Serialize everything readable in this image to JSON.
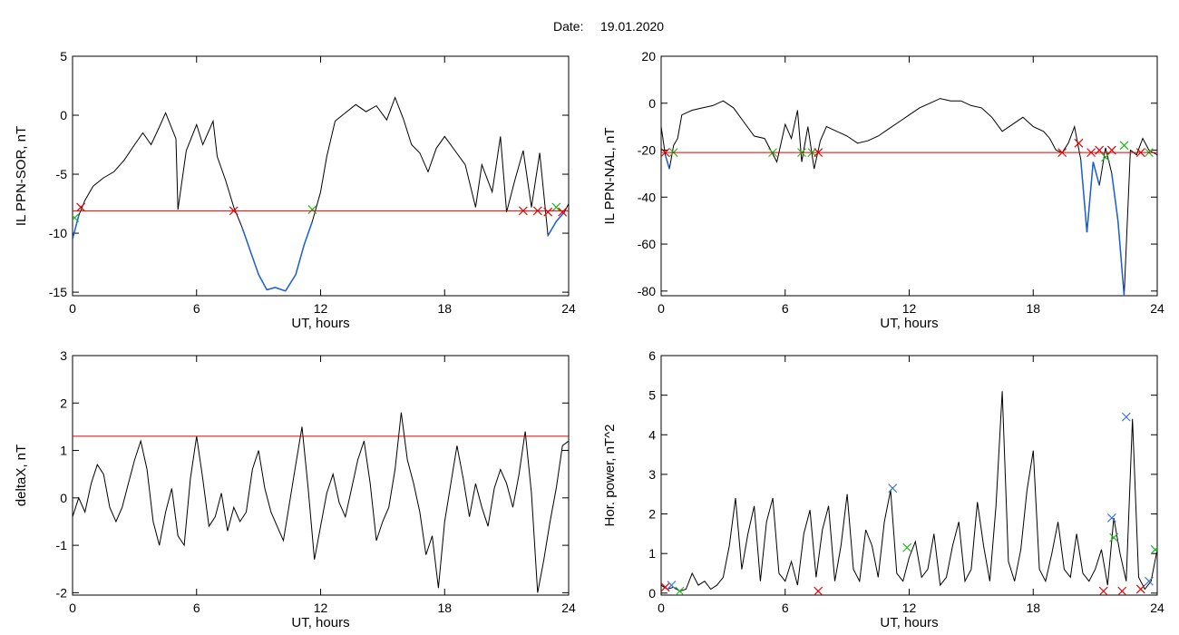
{
  "header": {
    "date_label": "Date:",
    "date_value": "19.01.2020"
  },
  "colors": {
    "trace": "#000000",
    "low_segment": "#1a5fd6",
    "threshold": "#e00000",
    "marker_red": "#e00000",
    "marker_green": "#1fb51f",
    "marker_blue": "#3a78d8"
  },
  "chart_data": [
    {
      "type": "line",
      "id": "ppn-sor",
      "title": "",
      "xlabel": "UT, hours",
      "ylabel": "IL PPN-SOR, nT",
      "xlim": [
        0,
        24
      ],
      "ylim": [
        -15.3,
        5
      ],
      "xticks": [
        0,
        6,
        12,
        18,
        24
      ],
      "yticks": [
        5,
        0,
        -5,
        -10,
        -15
      ],
      "threshold": -8.1,
      "series": [
        {
          "x": [
            0,
            0.3,
            0.6,
            1,
            1.5,
            2,
            2.5,
            3,
            3.4,
            3.8,
            4.2,
            4.5,
            5,
            5.1,
            5.5,
            6,
            6.3,
            6.8,
            7,
            7.4,
            7.8,
            8.2,
            8.6,
            9,
            9.4,
            9.8,
            10.3,
            10.8,
            11.2,
            11.6,
            12,
            12.3,
            12.7,
            13.2,
            13.7,
            14.2,
            14.7,
            15.2,
            15.6,
            16,
            16.4,
            16.8,
            17.2,
            17.6,
            18,
            18.5,
            19,
            19.5,
            19.8,
            20.3,
            20.7,
            21,
            21.4,
            21.8,
            22.2,
            22.6,
            23,
            23.4,
            23.8,
            24
          ],
          "y": [
            -10.5,
            -8.5,
            -7.2,
            -6,
            -5.3,
            -4.8,
            -3.8,
            -2.5,
            -1.5,
            -2.5,
            -1,
            0.2,
            -2,
            -8,
            -3,
            -0.8,
            -2.5,
            -0.5,
            -3.5,
            -5.5,
            -7.8,
            -9.5,
            -11.5,
            -13.5,
            -14.8,
            -14.6,
            -14.9,
            -13.5,
            -11,
            -9,
            -6.5,
            -3.5,
            -0.5,
            0.2,
            0.9,
            0.3,
            0.8,
            -0.4,
            1.5,
            -0.3,
            -2.5,
            -3.2,
            -4.8,
            -2.8,
            -1.8,
            -3,
            -4.2,
            -7.8,
            -4.2,
            -6.5,
            -1.8,
            -8.2,
            -5.5,
            -3,
            -7.8,
            -3.2,
            -10.2,
            -9,
            -8.2,
            -7.5
          ]
        }
      ],
      "markers": [
        {
          "x": 0.1,
          "y": -8.7,
          "color": "green"
        },
        {
          "x": 0.4,
          "y": -7.8,
          "color": "red"
        },
        {
          "x": 7.8,
          "y": -8.1,
          "color": "red"
        },
        {
          "x": 11.6,
          "y": -8.0,
          "color": "green"
        },
        {
          "x": 21.8,
          "y": -8.1,
          "color": "red"
        },
        {
          "x": 22.5,
          "y": -8.1,
          "color": "red"
        },
        {
          "x": 23.0,
          "y": -8.2,
          "color": "red"
        },
        {
          "x": 23.4,
          "y": -7.8,
          "color": "green"
        },
        {
          "x": 23.7,
          "y": -8.2,
          "color": "red"
        }
      ]
    },
    {
      "type": "line",
      "id": "ppn-nal",
      "title": "",
      "xlabel": "UT, hours",
      "ylabel": "IL PPN-NAL, nT",
      "xlim": [
        0,
        24
      ],
      "ylim": [
        -82,
        20
      ],
      "xticks": [
        0,
        6,
        12,
        18,
        24
      ],
      "yticks": [
        20,
        0,
        -20,
        -40,
        -60,
        -80
      ],
      "threshold": -21,
      "series": [
        {
          "x": [
            0,
            0.2,
            0.4,
            0.6,
            0.8,
            1,
            1.5,
            2,
            2.5,
            3,
            3.5,
            4,
            4.5,
            5,
            5.3,
            5.6,
            6,
            6.3,
            6.6,
            6.8,
            7.1,
            7.4,
            7.7,
            8,
            8.5,
            9,
            9.5,
            10,
            10.5,
            11,
            11.5,
            12,
            12.5,
            13,
            13.5,
            14,
            14.5,
            15,
            15.5,
            16,
            16.5,
            17,
            17.5,
            18,
            18.5,
            18.8,
            19.1,
            19.4,
            19.7,
            20,
            20.3,
            20.6,
            20.9,
            21.2,
            21.5,
            21.8,
            22.1,
            22.4,
            22.7,
            23,
            23.3,
            23.6,
            24
          ],
          "y": [
            -10,
            -22,
            -28,
            -18,
            -15,
            -5,
            -3,
            -2,
            -1,
            1,
            -2,
            -8,
            -14,
            -15,
            -20,
            -25,
            -9,
            -15,
            -3,
            -25,
            -10,
            -28,
            -16,
            -10,
            -12,
            -14,
            -17,
            -16,
            -14,
            -11,
            -8,
            -5,
            -2,
            0,
            2,
            1,
            1,
            -1,
            -2,
            -6,
            -12,
            -9,
            -6,
            -10,
            -12,
            -15,
            -20,
            -21,
            -17,
            -10,
            -24,
            -55,
            -25,
            -35,
            -19,
            -30,
            -50,
            -82,
            -20,
            -22,
            -15,
            -20,
            -22
          ]
        }
      ],
      "markers": [
        {
          "x": 0.2,
          "y": -21,
          "color": "red"
        },
        {
          "x": 0.6,
          "y": -21,
          "color": "green"
        },
        {
          "x": 5.4,
          "y": -21,
          "color": "green"
        },
        {
          "x": 6.8,
          "y": -21,
          "color": "green"
        },
        {
          "x": 7.3,
          "y": -21,
          "color": "green"
        },
        {
          "x": 7.6,
          "y": -21,
          "color": "red"
        },
        {
          "x": 19.4,
          "y": -21,
          "color": "red"
        },
        {
          "x": 20.2,
          "y": -17,
          "color": "red"
        },
        {
          "x": 20.8,
          "y": -21,
          "color": "red"
        },
        {
          "x": 21.2,
          "y": -20,
          "color": "red"
        },
        {
          "x": 21.5,
          "y": -23,
          "color": "green"
        },
        {
          "x": 21.8,
          "y": -20,
          "color": "red"
        },
        {
          "x": 22.4,
          "y": -18,
          "color": "green"
        },
        {
          "x": 23.2,
          "y": -21,
          "color": "red"
        },
        {
          "x": 23.6,
          "y": -21,
          "color": "green"
        }
      ]
    },
    {
      "type": "line",
      "id": "deltax",
      "title": "",
      "xlabel": "UT, hours",
      "ylabel": "deltaX, nT",
      "xlim": [
        0,
        24
      ],
      "ylim": [
        -2.05,
        3
      ],
      "xticks": [
        0,
        6,
        12,
        18,
        24
      ],
      "yticks": [
        3,
        2,
        1,
        0,
        -1,
        -2
      ],
      "threshold": 1.3,
      "series": [
        {
          "x": [
            0,
            0.3,
            0.6,
            0.9,
            1.2,
            1.5,
            1.8,
            2.1,
            2.4,
            2.7,
            3,
            3.3,
            3.6,
            3.9,
            4.2,
            4.5,
            4.8,
            5.1,
            5.4,
            5.7,
            6,
            6.3,
            6.6,
            6.9,
            7.2,
            7.5,
            7.8,
            8.1,
            8.4,
            8.7,
            9,
            9.3,
            9.6,
            9.9,
            10.2,
            10.5,
            10.8,
            11.1,
            11.4,
            11.7,
            12,
            12.3,
            12.6,
            12.9,
            13.2,
            13.5,
            13.8,
            14.1,
            14.4,
            14.7,
            15,
            15.3,
            15.6,
            15.9,
            16.2,
            16.5,
            16.8,
            17.1,
            17.4,
            17.7,
            18,
            18.3,
            18.6,
            18.9,
            19.2,
            19.5,
            19.8,
            20.1,
            20.4,
            20.7,
            21,
            21.3,
            21.6,
            21.9,
            22.2,
            22.5,
            22.8,
            23.1,
            23.4,
            23.7,
            24
          ],
          "y": [
            -0.4,
            0,
            -0.3,
            0.3,
            0.7,
            0.5,
            -0.2,
            -0.5,
            -0.2,
            0.3,
            0.8,
            1.2,
            0.6,
            -0.5,
            -1,
            -0.3,
            0.2,
            -0.8,
            -1,
            0.4,
            1.3,
            0.4,
            -0.6,
            -0.4,
            0.1,
            -0.7,
            -0.2,
            -0.5,
            -0.3,
            0.6,
            1,
            0.2,
            -0.3,
            -0.6,
            -0.9,
            -0.1,
            0.7,
            1.5,
            0.2,
            -1.3,
            -0.6,
            0.1,
            0.5,
            -0.1,
            -0.4,
            0.2,
            0.8,
            1.2,
            0.3,
            -0.9,
            -0.5,
            -0.2,
            0.6,
            1.8,
            0.8,
            0.3,
            -0.3,
            -1.2,
            -0.8,
            -1.9,
            -0.5,
            0.3,
            1.1,
            0.4,
            -0.4,
            0.3,
            -0.2,
            -0.6,
            0.2,
            0.6,
            0.3,
            -0.2,
            0.5,
            1.4,
            0.1,
            -2,
            -1.3,
            -0.5,
            0.2,
            1.1,
            1.2
          ]
        }
      ],
      "markers": []
    },
    {
      "type": "line",
      "id": "hor-power",
      "title": "",
      "xlabel": "UT, hours",
      "ylabel": "Hor. power, nT^2",
      "xlim": [
        0,
        24
      ],
      "ylim": [
        -0.05,
        6
      ],
      "xticks": [
        0,
        6,
        12,
        18,
        24
      ],
      "yticks": [
        6,
        5,
        4,
        3,
        2,
        1,
        0
      ],
      "threshold": null,
      "series": [
        {
          "x": [
            0,
            0.3,
            0.6,
            0.9,
            1.2,
            1.5,
            1.8,
            2.1,
            2.4,
            2.7,
            3,
            3.3,
            3.6,
            3.9,
            4.2,
            4.5,
            4.8,
            5.1,
            5.4,
            5.7,
            6,
            6.3,
            6.6,
            6.9,
            7.2,
            7.5,
            7.8,
            8.1,
            8.4,
            8.7,
            9,
            9.3,
            9.6,
            9.9,
            10.2,
            10.5,
            10.8,
            11.1,
            11.4,
            11.7,
            12,
            12.3,
            12.6,
            12.9,
            13.2,
            13.5,
            13.8,
            14.1,
            14.4,
            14.7,
            15,
            15.3,
            15.6,
            15.9,
            16.2,
            16.5,
            16.8,
            17.1,
            17.4,
            17.7,
            18,
            18.3,
            18.6,
            18.9,
            19.2,
            19.5,
            19.8,
            20.1,
            20.4,
            20.7,
            21,
            21.3,
            21.6,
            21.9,
            22.2,
            22.5,
            22.8,
            23.1,
            23.4,
            23.7,
            24
          ],
          "y": [
            0.2,
            0.1,
            0.15,
            0.05,
            0.1,
            0.5,
            0.2,
            0.3,
            0.1,
            0.2,
            0.4,
            1.2,
            2.4,
            0.6,
            1.5,
            2.2,
            0.3,
            1.8,
            2.4,
            0.5,
            0.3,
            0.8,
            0.2,
            1.5,
            2.1,
            0.4,
            1.6,
            2.2,
            0.3,
            1.2,
            2.5,
            0.6,
            0.3,
            1.6,
            1.2,
            0.4,
            1.8,
            2.6,
            0.5,
            0.3,
            0.9,
            1.3,
            0.4,
            0.6,
            1.5,
            0.2,
            0.4,
            1.2,
            1.8,
            0.3,
            0.6,
            2.3,
            1.2,
            0.3,
            2.2,
            5.1,
            0.8,
            0.3,
            1.1,
            2.6,
            3.6,
            0.6,
            0.3,
            1,
            1.8,
            0.6,
            0.4,
            1.5,
            0.5,
            0.3,
            0.6,
            1.1,
            0.2,
            1.9,
            1,
            0.3,
            4.4,
            0.4,
            0.1,
            0.3,
            1.1
          ]
        }
      ],
      "markers": [
        {
          "x": 0.2,
          "y": 0.15,
          "color": "red"
        },
        {
          "x": 0.5,
          "y": 0.2,
          "color": "blue"
        },
        {
          "x": 0.9,
          "y": 0.05,
          "color": "green"
        },
        {
          "x": 7.6,
          "y": 0.05,
          "color": "red"
        },
        {
          "x": 11.2,
          "y": 2.65,
          "color": "blue"
        },
        {
          "x": 11.9,
          "y": 1.15,
          "color": "green"
        },
        {
          "x": 21.4,
          "y": 0.05,
          "color": "red"
        },
        {
          "x": 21.8,
          "y": 1.9,
          "color": "blue"
        },
        {
          "x": 21.9,
          "y": 1.4,
          "color": "green"
        },
        {
          "x": 22.3,
          "y": 0.05,
          "color": "red"
        },
        {
          "x": 22.5,
          "y": 4.45,
          "color": "blue"
        },
        {
          "x": 23.2,
          "y": 0.1,
          "color": "red"
        },
        {
          "x": 23.6,
          "y": 0.3,
          "color": "blue"
        },
        {
          "x": 23.9,
          "y": 1.1,
          "color": "green"
        }
      ]
    }
  ]
}
